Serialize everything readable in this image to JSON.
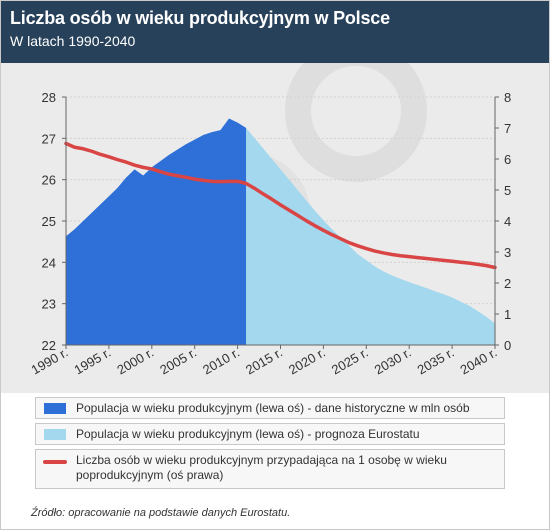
{
  "header": {
    "title": "Liczba osób w wieku produkcyjnym w Polsce",
    "subtitle": "W latach 1990-2040"
  },
  "chart_data": {
    "type": "area",
    "title": "Liczba osób w wieku produkcyjnym w Polsce",
    "subtitle": "W latach 1990-2040",
    "x_ticks": [
      "1990 r.",
      "1995 r.",
      "2000 r.",
      "2005 r.",
      "2010 r.",
      "2015 r.",
      "2020 r.",
      "2025 r.",
      "2030 r.",
      "2035 r.",
      "2040 r."
    ],
    "x_tick_values": [
      1990,
      1995,
      2000,
      2005,
      2010,
      2015,
      2020,
      2025,
      2030,
      2035,
      2040
    ],
    "xlim": [
      1990,
      2040
    ],
    "y_left": {
      "ticks": [
        22,
        23,
        24,
        25,
        26,
        27,
        28
      ],
      "lim": [
        22,
        28
      ]
    },
    "y_right": {
      "ticks": [
        0,
        1,
        2,
        3,
        4,
        5,
        6,
        7,
        8
      ],
      "lim": [
        0,
        8
      ]
    },
    "grid": true,
    "series": [
      {
        "name": "Populacja w wieku produkcyjnym (lewa oś) - dane historyczne w mln osób",
        "axis": "left",
        "color": "#2e70d8",
        "points": [
          [
            1990,
            24.63
          ],
          [
            1991,
            24.8
          ],
          [
            1992,
            25.0
          ],
          [
            1993,
            25.2
          ],
          [
            1994,
            25.4
          ],
          [
            1995,
            25.6
          ],
          [
            1996,
            25.8
          ],
          [
            1997,
            26.05
          ],
          [
            1998,
            26.25
          ],
          [
            1999,
            26.1
          ],
          [
            2000,
            26.3
          ],
          [
            2001,
            26.45
          ],
          [
            2002,
            26.6
          ],
          [
            2003,
            26.73
          ],
          [
            2004,
            26.86
          ],
          [
            2005,
            26.97
          ],
          [
            2006,
            27.08
          ],
          [
            2007,
            27.15
          ],
          [
            2008,
            27.2
          ],
          [
            2009,
            27.48
          ],
          [
            2010,
            27.38
          ],
          [
            2011,
            27.25
          ]
        ]
      },
      {
        "name": "Populacja w wieku produkcyjnym (lewa oś) - prognoza Eurostatu",
        "axis": "left",
        "color": "#a3d8ee",
        "points": [
          [
            2011,
            27.25
          ],
          [
            2012,
            27.0
          ],
          [
            2013,
            26.75
          ],
          [
            2014,
            26.5
          ],
          [
            2015,
            26.25
          ],
          [
            2016,
            26.0
          ],
          [
            2017,
            25.75
          ],
          [
            2018,
            25.5
          ],
          [
            2019,
            25.25
          ],
          [
            2020,
            25.02
          ],
          [
            2021,
            24.8
          ],
          [
            2022,
            24.6
          ],
          [
            2023,
            24.4
          ],
          [
            2024,
            24.2
          ],
          [
            2025,
            24.05
          ],
          [
            2026,
            23.9
          ],
          [
            2027,
            23.78
          ],
          [
            2028,
            23.68
          ],
          [
            2029,
            23.6
          ],
          [
            2030,
            23.52
          ],
          [
            2031,
            23.45
          ],
          [
            2032,
            23.38
          ],
          [
            2033,
            23.3
          ],
          [
            2034,
            23.23
          ],
          [
            2035,
            23.15
          ],
          [
            2036,
            23.05
          ],
          [
            2037,
            22.95
          ],
          [
            2038,
            22.82
          ],
          [
            2039,
            22.68
          ],
          [
            2040,
            22.52
          ]
        ]
      },
      {
        "name": "Liczba osób w wieku produkcyjnym przypadająca na 1 osobę w wieku poprodukcyjnym (oś prawa)",
        "axis": "right",
        "color": "#d94545",
        "points": [
          [
            1990,
            6.5
          ],
          [
            1991,
            6.38
          ],
          [
            1992,
            6.33
          ],
          [
            1993,
            6.25
          ],
          [
            1994,
            6.15
          ],
          [
            1995,
            6.07
          ],
          [
            1996,
            5.98
          ],
          [
            1997,
            5.9
          ],
          [
            1998,
            5.8
          ],
          [
            1999,
            5.73
          ],
          [
            2000,
            5.68
          ],
          [
            2001,
            5.59
          ],
          [
            2002,
            5.51
          ],
          [
            2003,
            5.46
          ],
          [
            2004,
            5.41
          ],
          [
            2005,
            5.35
          ],
          [
            2006,
            5.31
          ],
          [
            2007,
            5.28
          ],
          [
            2008,
            5.27
          ],
          [
            2009,
            5.28
          ],
          [
            2010,
            5.28
          ],
          [
            2011,
            5.21
          ],
          [
            2012,
            5.05
          ],
          [
            2013,
            4.87
          ],
          [
            2014,
            4.7
          ],
          [
            2015,
            4.52
          ],
          [
            2016,
            4.35
          ],
          [
            2017,
            4.18
          ],
          [
            2018,
            4.01
          ],
          [
            2019,
            3.85
          ],
          [
            2020,
            3.7
          ],
          [
            2021,
            3.56
          ],
          [
            2022,
            3.43
          ],
          [
            2023,
            3.3
          ],
          [
            2024,
            3.2
          ],
          [
            2025,
            3.11
          ],
          [
            2026,
            3.03
          ],
          [
            2027,
            2.97
          ],
          [
            2028,
            2.92
          ],
          [
            2029,
            2.88
          ],
          [
            2030,
            2.85
          ],
          [
            2031,
            2.82
          ],
          [
            2032,
            2.79
          ],
          [
            2033,
            2.76
          ],
          [
            2034,
            2.73
          ],
          [
            2035,
            2.7
          ],
          [
            2036,
            2.67
          ],
          [
            2037,
            2.64
          ],
          [
            2038,
            2.6
          ],
          [
            2039,
            2.56
          ],
          [
            2040,
            2.5
          ]
        ]
      }
    ]
  },
  "legend": {
    "items": [
      {
        "label": "Populacja w wieku produkcyjnym (lewa oś) - dane historyczne w mln osób",
        "color": "#2e70d8"
      },
      {
        "label": "Populacja w wieku produkcyjnym (lewa oś) - prognoza Eurostatu",
        "color": "#a3d8ee"
      },
      {
        "label": "Liczba osób w wieku produkcyjnym przypadająca na 1 osobę w wieku poprodukcyjnym (oś prawa)",
        "color": "#d94545"
      }
    ]
  },
  "source": "Źródło: opracowanie na podstawie danych Eurostatu."
}
